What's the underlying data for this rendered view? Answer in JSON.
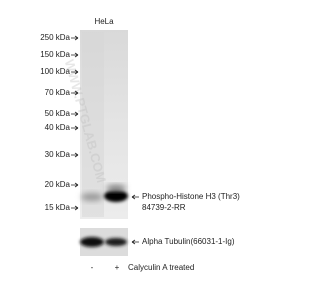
{
  "header": {
    "cell_line": "HeLa"
  },
  "markers": [
    "250 kDa",
    "150 kDa",
    "100 kDa",
    "70 kDa",
    "50 kDa",
    "40 kDa",
    "30 kDa",
    "20 kDa",
    "15 kDa"
  ],
  "targets": {
    "main": "Phospho-Histone H3 (Thr3)",
    "main_catalog": "84739-2-RR",
    "control": "Alpha Tubulin(66031-1-Ig)"
  },
  "lanes": [
    "-",
    "+"
  ],
  "treatment": "Calyculin A treated",
  "watermark": "WWW.PTGLAB.COM"
}
